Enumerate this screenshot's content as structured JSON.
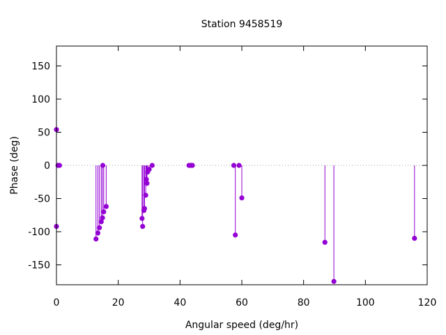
{
  "chart_data": {
    "type": "scatter",
    "style": "impulses with points",
    "title": "Station 9458519",
    "xlabel": "Angular speed (deg/hr)",
    "ylabel": "Phase (deg)",
    "xlim": [
      0,
      120
    ],
    "ylim": [
      -180,
      180
    ],
    "xticks": [
      0,
      20,
      40,
      60,
      80,
      100,
      120
    ],
    "yticks": [
      -150,
      -100,
      -50,
      0,
      50,
      100,
      150
    ],
    "zero_line": "dotted",
    "grid": false,
    "legend": "none",
    "series_color": "#9400d3",
    "points": [
      {
        "x": 0.0,
        "y": 54
      },
      {
        "x": 0.0,
        "y": -92
      },
      {
        "x": 0.5,
        "y": 0
      },
      {
        "x": 1.0,
        "y": 0
      },
      {
        "x": 12.8,
        "y": -111
      },
      {
        "x": 13.4,
        "y": -102
      },
      {
        "x": 13.9,
        "y": -94
      },
      {
        "x": 14.5,
        "y": -85
      },
      {
        "x": 14.9,
        "y": -79
      },
      {
        "x": 15.0,
        "y": 0
      },
      {
        "x": 15.3,
        "y": -70
      },
      {
        "x": 16.1,
        "y": -62
      },
      {
        "x": 27.7,
        "y": -80
      },
      {
        "x": 27.9,
        "y": -92
      },
      {
        "x": 28.3,
        "y": -68
      },
      {
        "x": 28.5,
        "y": -65
      },
      {
        "x": 28.9,
        "y": -45
      },
      {
        "x": 29.1,
        "y": -21
      },
      {
        "x": 29.3,
        "y": -27
      },
      {
        "x": 29.5,
        "y": -10
      },
      {
        "x": 30.0,
        "y": -6
      },
      {
        "x": 31.0,
        "y": 0
      },
      {
        "x": 42.9,
        "y": 0
      },
      {
        "x": 43.5,
        "y": 0
      },
      {
        "x": 44.0,
        "y": 0
      },
      {
        "x": 57.4,
        "y": 0
      },
      {
        "x": 57.9,
        "y": -105
      },
      {
        "x": 59.1,
        "y": 0
      },
      {
        "x": 60.0,
        "y": -49
      },
      {
        "x": 86.9,
        "y": -116
      },
      {
        "x": 89.8,
        "y": -175
      },
      {
        "x": 115.9,
        "y": -110
      }
    ]
  }
}
